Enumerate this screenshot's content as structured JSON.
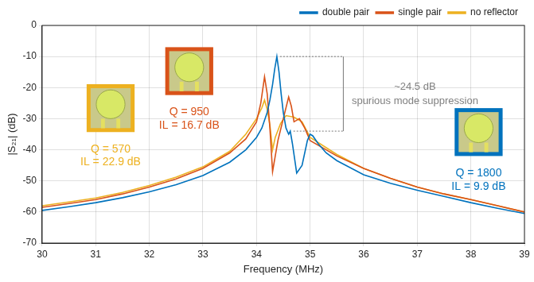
{
  "chart_data": {
    "type": "line",
    "x_label": "Frequency (MHz)",
    "y_label": "|S₂₁| (dB)",
    "xlim": [
      30,
      39
    ],
    "xticks": [
      30,
      31,
      32,
      33,
      34,
      35,
      36,
      37,
      38,
      39
    ],
    "ylim": [
      -70,
      0
    ],
    "yticks": [
      -70,
      -60,
      -50,
      -40,
      -30,
      -20,
      -10,
      0
    ],
    "grid": true,
    "legend": "upper right",
    "series": [
      {
        "name": "double pair",
        "color": "#0072BD",
        "x": [
          30,
          30.5,
          31,
          31.5,
          32,
          32.5,
          33,
          33.5,
          33.8,
          34,
          34.1,
          34.2,
          34.25,
          34.3,
          34.34,
          34.38,
          34.42,
          34.46,
          34.5,
          34.55,
          34.6,
          34.63,
          34.67,
          34.75,
          34.85,
          34.95,
          35,
          35.05,
          35.15,
          35.3,
          35.5,
          36,
          36.5,
          37,
          37.5,
          38,
          38.5,
          39
        ],
        "values": [
          -59.5,
          -58.3,
          -57,
          -55.4,
          -53.5,
          -51.2,
          -48.3,
          -44,
          -40,
          -36,
          -33,
          -28,
          -24,
          -19,
          -14,
          -10,
          -15,
          -22,
          -28,
          -33,
          -35,
          -34,
          -38,
          -47.5,
          -45,
          -37,
          -35,
          -35.5,
          -38,
          -41,
          -43.5,
          -48,
          -50.8,
          -53,
          -55,
          -57,
          -58.8,
          -60.5
        ]
      },
      {
        "name": "single pair",
        "color": "#D95319",
        "x": [
          30,
          30.5,
          31,
          31.5,
          32,
          32.5,
          33,
          33.5,
          33.8,
          34,
          34.08,
          34.15,
          34.2,
          34.25,
          34.3,
          34.35,
          34.4,
          34.5,
          34.6,
          34.65,
          34.7,
          34.8,
          34.9,
          35,
          35.5,
          36,
          36.5,
          37,
          37.5,
          38,
          38.5,
          39
        ],
        "values": [
          -58.5,
          -57.3,
          -56,
          -54.2,
          -52,
          -49.4,
          -46,
          -41,
          -36.5,
          -31,
          -25,
          -16.5,
          -22,
          -33,
          -47,
          -42,
          -37,
          -30,
          -23,
          -26,
          -31,
          -30,
          -33,
          -37,
          -42,
          -46,
          -49.2,
          -52,
          -54.2,
          -56,
          -58,
          -60
        ]
      },
      {
        "name": "no reflector",
        "color": "#EDB120",
        "x": [
          30,
          30.5,
          31,
          31.5,
          32,
          32.5,
          33,
          33.5,
          33.8,
          34,
          34.1,
          34.15,
          34.2,
          34.25,
          34.3,
          34.35,
          34.45,
          34.55,
          34.7,
          34.85,
          35,
          35.5,
          36,
          36.5,
          37,
          37.5,
          38,
          38.5,
          39
        ],
        "values": [
          -58,
          -56.8,
          -55.5,
          -53.7,
          -51.5,
          -48.8,
          -45.5,
          -40.5,
          -35,
          -30,
          -26.5,
          -24,
          -27,
          -32,
          -40,
          -36,
          -31.5,
          -29,
          -29.5,
          -31,
          -36,
          -41.5,
          -46,
          -49.2,
          -52,
          -54.2,
          -56,
          -58,
          -60
        ]
      }
    ],
    "annotations": [
      {
        "series": "no reflector",
        "lines": [
          "Q = 570",
          "IL = 22.9 dB"
        ]
      },
      {
        "series": "single pair",
        "lines": [
          "Q = 950",
          "IL = 16.7 dB"
        ]
      },
      {
        "series": "double pair",
        "lines": [
          "Q = 1800",
          "IL = 9.9 dB"
        ]
      },
      {
        "series": "double pair",
        "bracket": true,
        "lines": [
          "~24.5 dB",
          "spurious mode suppression"
        ]
      }
    ]
  }
}
